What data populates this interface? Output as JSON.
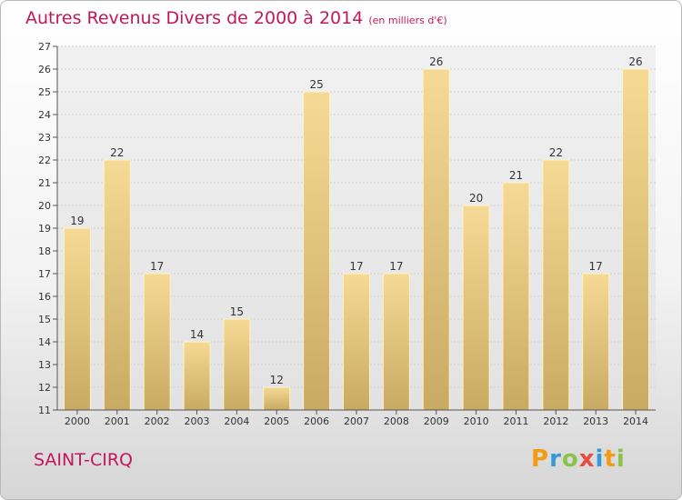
{
  "header": {
    "title": "Autres Revenus Divers de 2000 à 2014",
    "subtitle": "(en milliers d'€)"
  },
  "footer": {
    "city": "SAINT-CIRQ",
    "logo_letters": [
      "P",
      "r",
      "o",
      "x",
      "i",
      "t",
      "i"
    ],
    "logo_colors": [
      "#f39c12",
      "#3498db",
      "#8bc34a",
      "#e74c3c",
      "#3498db",
      "#f39c12",
      "#8bc34a"
    ]
  },
  "chart_data": {
    "type": "bar",
    "title": "Autres Revenus Divers de 2000 à 2014",
    "subtitle": "(en milliers d'€)",
    "categories": [
      "2000",
      "2001",
      "2002",
      "2003",
      "2004",
      "2005",
      "2006",
      "2007",
      "2008",
      "2009",
      "2010",
      "2011",
      "2012",
      "2013",
      "2014"
    ],
    "values": [
      19,
      22,
      17,
      14,
      15,
      12,
      25,
      17,
      17,
      26,
      20,
      21,
      22,
      17,
      26
    ],
    "ylim": [
      11,
      27
    ],
    "yticks": [
      11,
      12,
      13,
      14,
      15,
      16,
      17,
      18,
      19,
      20,
      21,
      22,
      23,
      24,
      25,
      26,
      27
    ],
    "grid": true,
    "bar_color": "#e6c97e"
  }
}
